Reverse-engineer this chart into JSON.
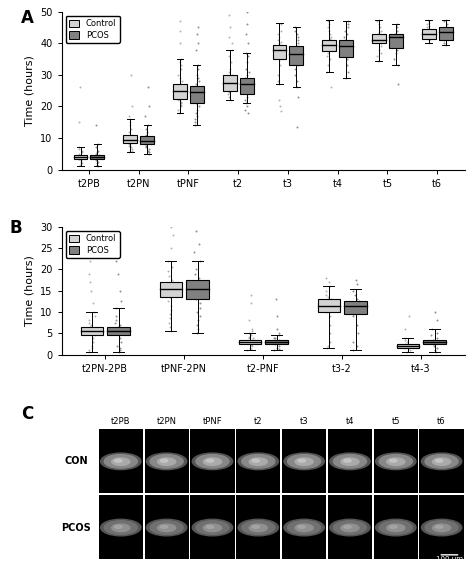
{
  "panel_A": {
    "categories": [
      "t2PB",
      "t2PN",
      "tPNF",
      "t2",
      "t3",
      "t4",
      "t5",
      "t6"
    ],
    "control": {
      "whislo": [
        1.0,
        5.5,
        18.0,
        22.0,
        27.0,
        31.0,
        34.5,
        40.0
      ],
      "q1": [
        3.5,
        8.5,
        22.5,
        25.0,
        35.0,
        37.5,
        40.0,
        41.5
      ],
      "med": [
        4.0,
        9.5,
        25.0,
        27.5,
        38.0,
        39.5,
        41.0,
        43.0
      ],
      "q3": [
        4.5,
        11.0,
        27.0,
        30.0,
        39.5,
        41.0,
        43.0,
        44.5
      ],
      "whishi": [
        7.0,
        16.0,
        35.0,
        38.0,
        46.5,
        47.5,
        47.5,
        47.5
      ],
      "scatter_ctrl": [
        [
          1.5,
          2.0,
          2.5,
          3.0,
          3.2,
          3.5,
          3.8,
          4.0,
          4.2,
          4.5,
          5.0,
          5.5,
          6.0,
          6.5,
          7.0,
          15.0,
          26.0
        ],
        [
          5.5,
          6.0,
          6.5,
          7.0,
          7.5,
          8.0,
          8.5,
          9.0,
          9.5,
          10.0,
          10.5,
          11.0,
          12.0,
          13.0,
          14.0,
          15.0,
          16.0,
          17.0,
          20.0,
          30.0
        ],
        [
          18.0,
          19.0,
          20.0,
          20.5,
          21.0,
          21.5,
          22.0,
          22.5,
          23.0,
          23.5,
          24.0,
          24.5,
          25.0,
          25.5,
          26.0,
          26.5,
          27.0,
          28.0,
          29.0,
          30.0,
          32.0,
          33.0,
          34.0,
          35.0,
          40.0,
          44.0,
          47.0
        ],
        [
          22.0,
          23.0,
          24.0,
          24.5,
          25.0,
          25.5,
          26.0,
          26.5,
          27.0,
          27.5,
          28.0,
          28.5,
          29.0,
          30.0,
          31.0,
          32.0,
          34.0,
          36.0,
          38.0,
          40.0,
          42.0,
          45.0,
          49.0
        ],
        [
          27.0,
          28.0,
          30.0,
          33.0,
          35.0,
          36.0,
          37.0,
          38.0,
          38.5,
          39.0,
          39.5,
          40.0,
          40.5,
          41.0,
          42.0,
          43.0,
          44.0,
          46.0,
          22.0,
          20.0,
          18.5
        ],
        [
          31.0,
          33.0,
          35.0,
          36.0,
          37.0,
          37.5,
          38.0,
          38.5,
          39.0,
          39.5,
          40.0,
          40.5,
          41.0,
          41.5,
          42.0,
          43.0,
          44.0,
          45.0,
          46.0,
          47.0,
          47.5,
          26.0
        ],
        [
          34.5,
          36.0,
          37.0,
          38.0,
          39.0,
          40.0,
          40.5,
          41.0,
          41.5,
          42.0,
          42.5,
          43.0,
          43.5,
          44.0,
          45.0,
          46.0,
          47.0,
          47.5
        ],
        [
          40.0,
          41.0,
          41.5,
          42.0,
          42.5,
          43.0,
          43.5,
          44.0,
          44.5,
          45.0,
          45.5,
          46.0,
          46.5,
          47.0,
          47.5
        ]
      ]
    },
    "pcos": {
      "whislo": [
        1.0,
        5.0,
        14.0,
        21.0,
        26.0,
        29.0,
        33.0,
        39.5
      ],
      "q1": [
        3.5,
        8.0,
        21.0,
        24.0,
        33.0,
        35.5,
        38.5,
        41.0
      ],
      "med": [
        4.0,
        9.0,
        24.5,
        27.0,
        36.5,
        39.0,
        42.0,
        43.5
      ],
      "q3": [
        4.5,
        10.5,
        26.5,
        29.0,
        39.0,
        41.0,
        43.0,
        45.0
      ],
      "whishi": [
        8.0,
        14.0,
        33.0,
        37.0,
        45.0,
        47.0,
        46.0,
        47.5
      ],
      "scatter_pcos": [
        [
          1.0,
          1.5,
          2.0,
          2.5,
          3.0,
          3.5,
          4.0,
          4.2,
          4.5,
          5.0,
          5.5,
          6.0,
          7.0,
          8.0,
          14.0
        ],
        [
          5.0,
          5.5,
          6.0,
          6.5,
          7.0,
          7.5,
          8.0,
          8.5,
          9.0,
          9.5,
          10.0,
          10.5,
          11.0,
          12.0,
          13.0,
          14.0,
          17.0,
          20.0,
          26.0
        ],
        [
          14.0,
          15.0,
          16.0,
          17.0,
          18.0,
          19.0,
          20.0,
          21.0,
          22.0,
          23.0,
          24.0,
          25.0,
          26.0,
          27.0,
          28.0,
          29.0,
          30.0,
          32.0,
          33.0,
          38.0,
          40.0,
          43.0,
          45.0
        ],
        [
          21.0,
          22.0,
          23.0,
          24.0,
          25.0,
          26.0,
          27.0,
          28.0,
          29.0,
          30.0,
          31.0,
          32.0,
          34.0,
          36.0,
          37.0,
          40.0,
          43.0,
          46.0,
          50.0,
          20.0,
          19.0,
          18.0
        ],
        [
          26.0,
          28.0,
          30.0,
          32.0,
          33.0,
          35.0,
          36.0,
          37.0,
          38.0,
          39.0,
          40.0,
          41.0,
          42.0,
          43.0,
          44.0,
          45.0,
          23.0,
          13.5
        ],
        [
          29.0,
          31.0,
          33.0,
          35.0,
          36.0,
          37.0,
          38.0,
          39.0,
          40.0,
          41.0,
          42.0,
          43.0,
          44.0,
          45.0,
          46.0,
          47.0
        ],
        [
          33.0,
          35.0,
          37.0,
          38.0,
          39.0,
          40.0,
          41.0,
          42.0,
          43.0,
          44.0,
          45.0,
          46.0,
          27.0
        ],
        [
          39.5,
          40.0,
          41.0,
          42.0,
          43.0,
          44.0,
          45.0,
          46.0,
          47.0,
          47.5
        ]
      ]
    },
    "ylim": [
      0,
      50
    ],
    "yticks": [
      0,
      10,
      20,
      30,
      40,
      50
    ],
    "ylabel": "Time (hours)"
  },
  "panel_B": {
    "categories": [
      "t2PN-2PB",
      "tPNF-2PN",
      "t2-PNF",
      "t3-2",
      "t4-3"
    ],
    "control": {
      "whislo": [
        0.5,
        5.5,
        1.0,
        1.5,
        0.5
      ],
      "q1": [
        4.5,
        13.5,
        2.5,
        10.0,
        1.5
      ],
      "med": [
        5.5,
        15.5,
        3.0,
        11.5,
        2.0
      ],
      "q3": [
        6.5,
        17.0,
        3.5,
        13.0,
        2.5
      ],
      "whishi": [
        10.0,
        22.0,
        5.0,
        16.0,
        4.0
      ],
      "scatter_ctrl": [
        [
          0.5,
          1.0,
          1.5,
          2.0,
          3.0,
          4.0,
          4.5,
          5.0,
          5.5,
          6.0,
          6.5,
          7.0,
          7.5,
          8.0,
          9.0,
          10.0,
          12.0,
          15.0,
          17.0,
          19.0,
          22.0
        ],
        [
          5.5,
          6.5,
          7.5,
          8.5,
          9.5,
          10.5,
          11.5,
          12.5,
          13.5,
          14.5,
          15.5,
          16.5,
          17.5,
          18.5,
          19.5,
          20.5,
          22.0,
          25.0,
          28.0,
          30.0
        ],
        [
          1.0,
          1.2,
          1.5,
          2.0,
          2.2,
          2.5,
          2.8,
          3.0,
          3.2,
          3.5,
          3.8,
          4.0,
          4.2,
          4.5,
          5.0,
          5.5,
          6.0,
          8.0,
          12.0,
          14.0
        ],
        [
          1.5,
          2.0,
          3.0,
          5.0,
          7.0,
          9.0,
          10.0,
          11.0,
          11.5,
          12.0,
          12.5,
          13.0,
          13.5,
          14.0,
          15.0,
          16.0,
          17.0,
          18.0
        ],
        [
          0.5,
          1.0,
          1.5,
          2.0,
          2.5,
          3.0,
          3.5,
          4.0,
          6.0,
          9.0
        ]
      ]
    },
    "pcos": {
      "whislo": [
        0.5,
        5.0,
        1.0,
        1.0,
        0.5
      ],
      "q1": [
        4.5,
        13.0,
        2.5,
        9.5,
        2.5
      ],
      "med": [
        5.5,
        15.5,
        3.0,
        11.5,
        3.0
      ],
      "q3": [
        6.5,
        17.5,
        3.5,
        12.5,
        3.5
      ],
      "whishi": [
        11.0,
        22.0,
        4.5,
        15.5,
        6.0
      ],
      "scatter_pcos": [
        [
          0.5,
          1.0,
          1.5,
          2.0,
          3.0,
          4.0,
          4.5,
          5.0,
          5.5,
          6.0,
          6.5,
          7.0,
          7.5,
          8.0,
          9.0,
          11.0,
          12.5,
          15.0,
          19.0,
          22.0
        ],
        [
          5.0,
          6.0,
          7.0,
          8.0,
          9.0,
          10.0,
          11.0,
          12.0,
          13.0,
          14.0,
          15.0,
          16.0,
          17.0,
          18.0,
          19.0,
          20.0,
          22.0,
          24.0,
          26.0,
          29.0
        ],
        [
          1.0,
          1.2,
          1.5,
          2.0,
          2.5,
          2.8,
          3.0,
          3.2,
          3.5,
          3.8,
          4.0,
          4.5,
          5.0,
          6.0,
          9.0,
          13.0
        ],
        [
          1.0,
          2.0,
          3.0,
          5.0,
          7.0,
          9.0,
          9.5,
          10.0,
          10.5,
          11.0,
          11.5,
          12.0,
          12.5,
          13.0,
          14.0,
          15.0,
          16.5,
          17.5
        ],
        [
          0.5,
          1.0,
          1.5,
          2.0,
          2.5,
          3.0,
          3.5,
          4.0,
          4.5,
          5.0,
          6.0,
          8.0,
          10.0
        ]
      ]
    },
    "ylim": [
      0,
      30
    ],
    "yticks": [
      0,
      5,
      10,
      15,
      20,
      25,
      30
    ],
    "ylabel": "Time (hours)"
  },
  "control_color": "#d3d3d3",
  "pcos_color": "#808080",
  "background_color": "#ffffff",
  "box_width": 0.28,
  "label_fontsize": 8,
  "tick_fontsize": 7,
  "panel_label_fontsize": 12,
  "panel_C_labels": [
    "t2PB",
    "t2PN",
    "tPNF",
    "t2",
    "t3",
    "t4",
    "t5",
    "t6"
  ],
  "panel_C_row_labels": [
    "CON",
    "PCOS"
  ]
}
